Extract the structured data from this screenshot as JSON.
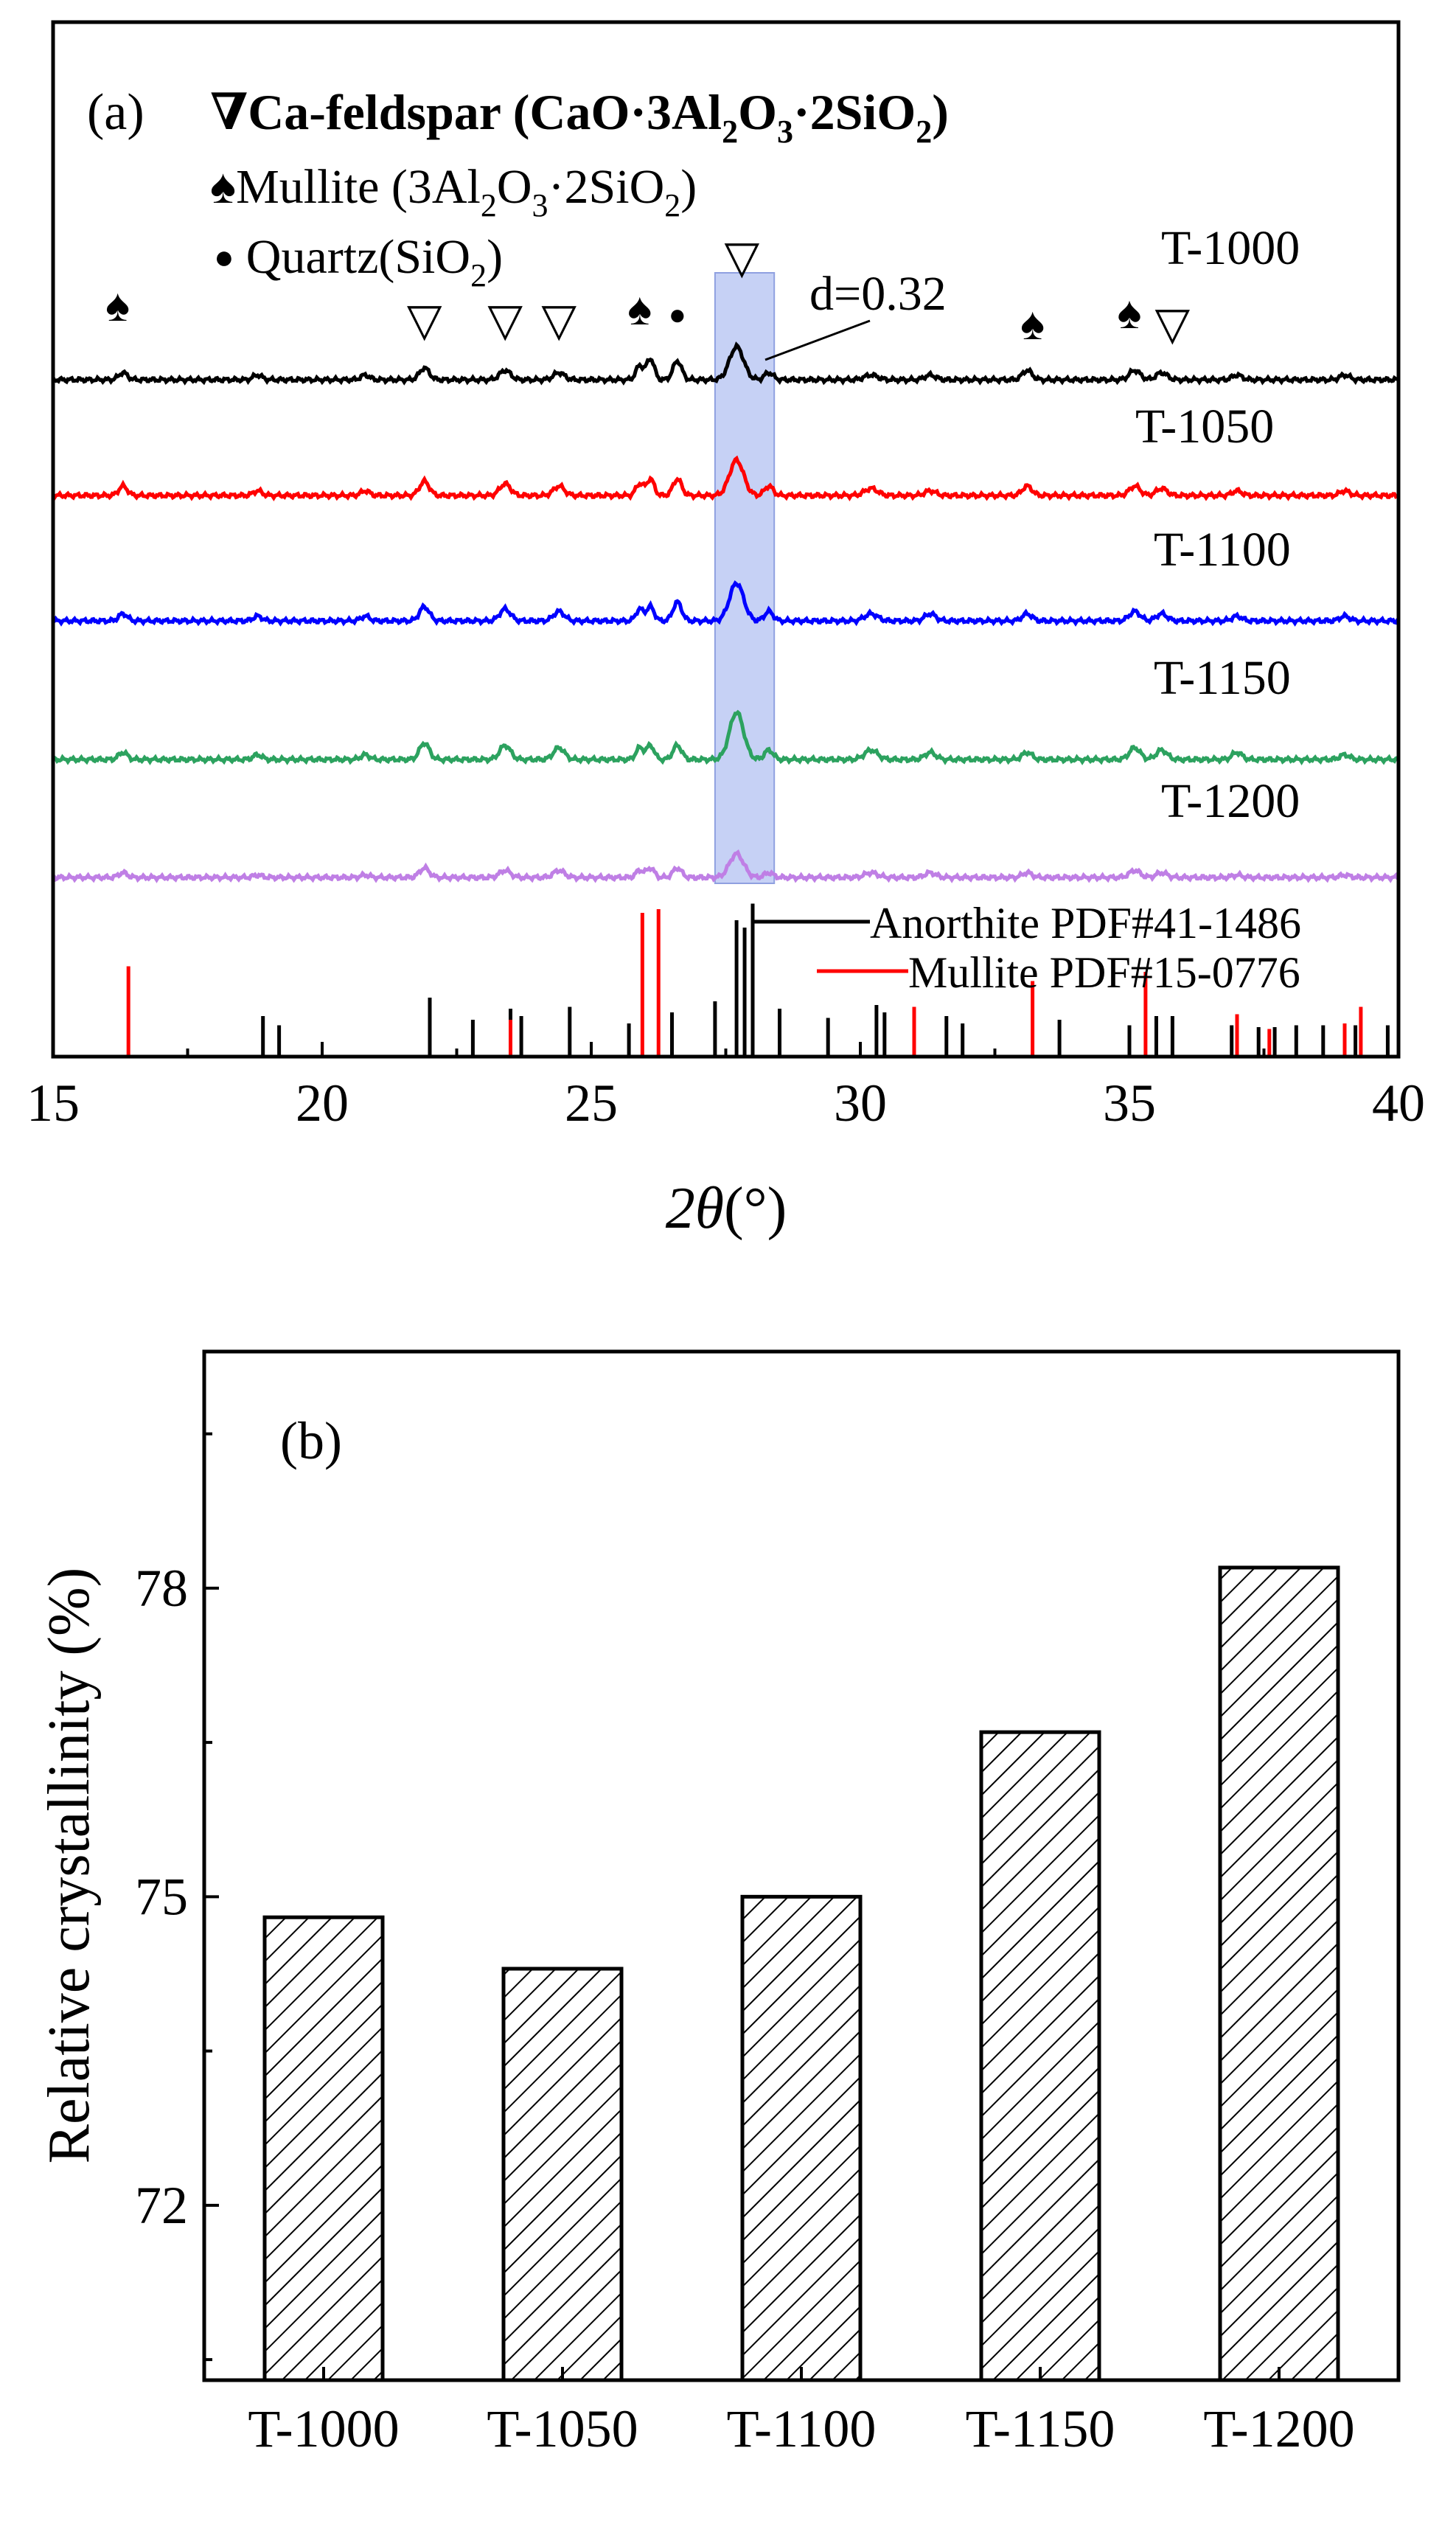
{
  "colors": {
    "black": "#000000",
    "red": "#ff0000",
    "blue": "#0000ff",
    "green": "#2ca25f",
    "purple": "#bf7fe5",
    "highlight": "#a8b8f0",
    "highlight_edge": "#8fa0e0"
  },
  "chart_data": [
    {
      "type": "line",
      "panel_label": "(a)",
      "title": "",
      "xlabel_symbol": "2θ",
      "xlabel_unit": "(°)",
      "xlim": [
        15,
        40
      ],
      "xticks": [
        "15",
        "20",
        "25",
        "30",
        "35",
        "40"
      ],
      "legend_markers": {
        "feldspar_symbol": "∇",
        "feldspar_name": "Ca-feldspar (CaO·3Al",
        "feldspar_sub2": "2",
        "feldspar_mid": "O",
        "feldspar_sub3": "3",
        "feldspar_tail": "·2SiO",
        "feldspar_sub2b": "2",
        "feldspar_close": ")",
        "mullite_symbol": "♠",
        "mullite_text": "Mullite (3Al",
        "mullite_sub2": "2",
        "mullite_mid": "O",
        "mullite_sub3": "3",
        "mullite_tail": "·2SiO",
        "mullite_sub2b": "2",
        "mullite_close": ")",
        "quartz_symbol": "●",
        "quartz_text": "Quartz(SiO",
        "quartz_sub": "2",
        "quartz_close": ")"
      },
      "highlight_range": [
        27.3,
        28.4
      ],
      "annotation": "d=0.32",
      "peak_markers": [
        {
          "symbol": "♠",
          "x": 16.2
        },
        {
          "symbol": "▽",
          "x": 21.9
        },
        {
          "symbol": "▽",
          "x": 23.4
        },
        {
          "symbol": "▽",
          "x": 24.4
        },
        {
          "symbol": "♠",
          "x": 25.9
        },
        {
          "symbol": "●",
          "x": 26.6
        },
        {
          "symbol": "▽",
          "x": 27.8
        },
        {
          "symbol": "♠",
          "x": 33.2
        },
        {
          "symbol": "♠",
          "x": 35.0
        },
        {
          "symbol": "▽",
          "x": 35.8
        }
      ],
      "peak_positions": [
        16.3,
        18.8,
        20.8,
        21.9,
        23.4,
        24.4,
        25.9,
        26.1,
        26.6,
        27.7,
        28.3,
        30.2,
        31.3,
        33.1,
        35.1,
        35.6,
        37.0,
        39.0
      ],
      "peak_widths": [
        0.08,
        0.08,
        0.08,
        0.09,
        0.1,
        0.1,
        0.07,
        0.07,
        0.08,
        0.13,
        0.08,
        0.12,
        0.1,
        0.09,
        0.1,
        0.1,
        0.09,
        0.09
      ],
      "series": [
        {
          "name": "T-1000",
          "color_key": "black",
          "label": "T-1000",
          "heights": [
            0.3,
            0.2,
            0.2,
            0.5,
            0.4,
            0.3,
            0.6,
            0.9,
            0.8,
            1.4,
            0.3,
            0.2,
            0.2,
            0.4,
            0.4,
            0.3,
            0.2,
            0.2
          ]
        },
        {
          "name": "T-1050",
          "color_key": "red",
          "label": "T-1050",
          "heights": [
            0.4,
            0.2,
            0.2,
            0.6,
            0.5,
            0.4,
            0.5,
            0.7,
            0.7,
            1.5,
            0.4,
            0.3,
            0.2,
            0.4,
            0.4,
            0.3,
            0.2,
            0.2
          ]
        },
        {
          "name": "T-1100",
          "color_key": "blue",
          "label": "T-1100",
          "heights": [
            0.3,
            0.2,
            0.2,
            0.6,
            0.5,
            0.4,
            0.5,
            0.6,
            0.8,
            1.6,
            0.4,
            0.3,
            0.3,
            0.3,
            0.4,
            0.3,
            0.2,
            0.2
          ]
        },
        {
          "name": "T-1150",
          "color_key": "green",
          "label": "T-1150",
          "heights": [
            0.3,
            0.2,
            0.2,
            0.7,
            0.6,
            0.5,
            0.5,
            0.6,
            0.6,
            2.0,
            0.4,
            0.4,
            0.3,
            0.3,
            0.5,
            0.4,
            0.3,
            0.2
          ]
        },
        {
          "name": "T-1200",
          "color_key": "purple",
          "label": "T-1200",
          "heights": [
            0.2,
            0.1,
            0.1,
            0.4,
            0.3,
            0.3,
            0.3,
            0.4,
            0.4,
            1.0,
            0.2,
            0.2,
            0.2,
            0.2,
            0.3,
            0.2,
            0.1,
            0.1
          ]
        }
      ],
      "reference_patterns": [
        {
          "name": "Anorthite PDF#41-1486",
          "color_key": "black",
          "peaks": [
            {
              "x": 18.9,
              "h": 0.22
            },
            {
              "x": 19.2,
              "h": 0.17
            },
            {
              "x": 22.0,
              "h": 0.32
            },
            {
              "x": 22.8,
              "h": 0.2
            },
            {
              "x": 23.5,
              "h": 0.26
            },
            {
              "x": 23.7,
              "h": 0.22
            },
            {
              "x": 24.6,
              "h": 0.27
            },
            {
              "x": 25.7,
              "h": 0.18
            },
            {
              "x": 26.5,
              "h": 0.24
            },
            {
              "x": 27.3,
              "h": 0.3
            },
            {
              "x": 27.7,
              "h": 0.74
            },
            {
              "x": 27.85,
              "h": 0.7
            },
            {
              "x": 28.0,
              "h": 0.83
            },
            {
              "x": 28.5,
              "h": 0.26
            },
            {
              "x": 29.4,
              "h": 0.21
            },
            {
              "x": 30.3,
              "h": 0.28
            },
            {
              "x": 30.45,
              "h": 0.24
            },
            {
              "x": 31.6,
              "h": 0.22
            },
            {
              "x": 31.9,
              "h": 0.18
            },
            {
              "x": 33.7,
              "h": 0.2
            },
            {
              "x": 35.0,
              "h": 0.17
            },
            {
              "x": 35.5,
              "h": 0.22
            },
            {
              "x": 35.8,
              "h": 0.22
            },
            {
              "x": 36.9,
              "h": 0.17
            },
            {
              "x": 37.4,
              "h": 0.16
            },
            {
              "x": 37.7,
              "h": 0.16
            },
            {
              "x": 38.1,
              "h": 0.17
            },
            {
              "x": 38.6,
              "h": 0.17
            },
            {
              "x": 39.2,
              "h": 0.17
            },
            {
              "x": 39.8,
              "h": 0.17
            }
          ]
        },
        {
          "name": "Mullite PDF#15-0776",
          "color_key": "red",
          "peaks": [
            {
              "x": 16.4,
              "h": 0.49
            },
            {
              "x": 23.5,
              "h": 0.2
            },
            {
              "x": 25.95,
              "h": 0.78
            },
            {
              "x": 26.25,
              "h": 0.8
            },
            {
              "x": 31.0,
              "h": 0.27
            },
            {
              "x": 33.2,
              "h": 0.41
            },
            {
              "x": 35.3,
              "h": 0.46
            },
            {
              "x": 37.0,
              "h": 0.23
            },
            {
              "x": 37.6,
              "h": 0.15
            },
            {
              "x": 39.0,
              "h": 0.18
            },
            {
              "x": 39.3,
              "h": 0.27
            }
          ]
        }
      ]
    },
    {
      "type": "bar",
      "panel_label": "(b)",
      "title": "",
      "xlabel": "",
      "ylabel": "Relative crystallinity (%)",
      "categories": [
        "T-1000",
        "T-1050",
        "T-1100",
        "T-1150",
        "T-1200"
      ],
      "values": [
        74.8,
        74.3,
        75.0,
        76.6,
        78.2
      ],
      "ylim": [
        70.3,
        80.3
      ],
      "yticks": [
        "72",
        "75",
        "78"
      ],
      "bar_pattern": "diagonal hatch"
    }
  ]
}
